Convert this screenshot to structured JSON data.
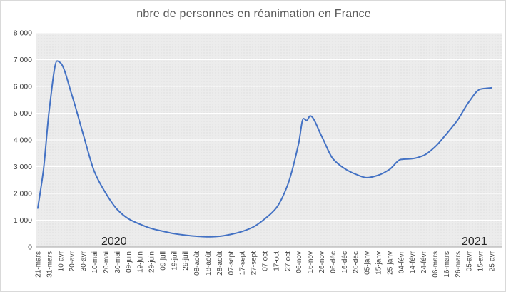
{
  "title": "nbre de personnes en réanimation en France",
  "annotations": {
    "year_left": "2020",
    "year_right": "2021"
  },
  "colors": {
    "line": "#4472C4",
    "plot_bg": "#ececec",
    "plot_bg_dot": "#dcdcdc",
    "gridline": "#ffffff",
    "axis_line": "#a6a6a6",
    "title_text": "#595959",
    "axis_text": "#404040"
  },
  "chart_data": {
    "type": "line",
    "title": "nbre de personnes en réanimation en France",
    "xlabel": "",
    "ylabel": "",
    "ylim": [
      0,
      8000
    ],
    "y_tick_step": 1000,
    "y_tick_labels": [
      "8 000",
      "7 000",
      "6 000",
      "5 000",
      "4 000",
      "3 000",
      "2 000",
      "1 000",
      "0"
    ],
    "grid": "horizontal",
    "legend": "none",
    "categories": [
      "21-mars",
      "31-mars",
      "10-avr",
      "20-avr",
      "30-avr",
      "10-mai",
      "20-mai",
      "30-mai",
      "09-juin",
      "19-juin",
      "29-juin",
      "09-juil",
      "19-juil",
      "29-juil",
      "08-août",
      "18-août",
      "28-août",
      "07-sept",
      "17-sept",
      "27-sept",
      "07-oct",
      "17-oct",
      "27-oct",
      "06-nov",
      "16-nov",
      "26-nov",
      "06-déc",
      "16-déc",
      "26-déc",
      "05-janv",
      "15-janv",
      "25-janv",
      "04-févr",
      "14-févr",
      "24-févr",
      "06-mars",
      "16-mars",
      "26-mars",
      "05-avr",
      "15-avr",
      "25-avr"
    ],
    "values": [
      1450,
      5100,
      6880,
      5680,
      4210,
      2800,
      2000,
      1400,
      1050,
      850,
      690,
      590,
      500,
      440,
      400,
      380,
      400,
      470,
      580,
      750,
      1050,
      1450,
      2300,
      3900,
      4900,
      4150,
      3300,
      2940,
      2720,
      2590,
      2680,
      2900,
      3270,
      3300,
      3420,
      3740,
      4220,
      4750,
      5430,
      5900,
      5950
    ],
    "extra_shape_points": [
      {
        "i": 0.5,
        "v": 2900
      },
      {
        "i": 1.7,
        "v": 6950
      },
      {
        "i": 23.4,
        "v": 4800
      },
      {
        "i": 23.7,
        "v": 4730
      }
    ]
  }
}
